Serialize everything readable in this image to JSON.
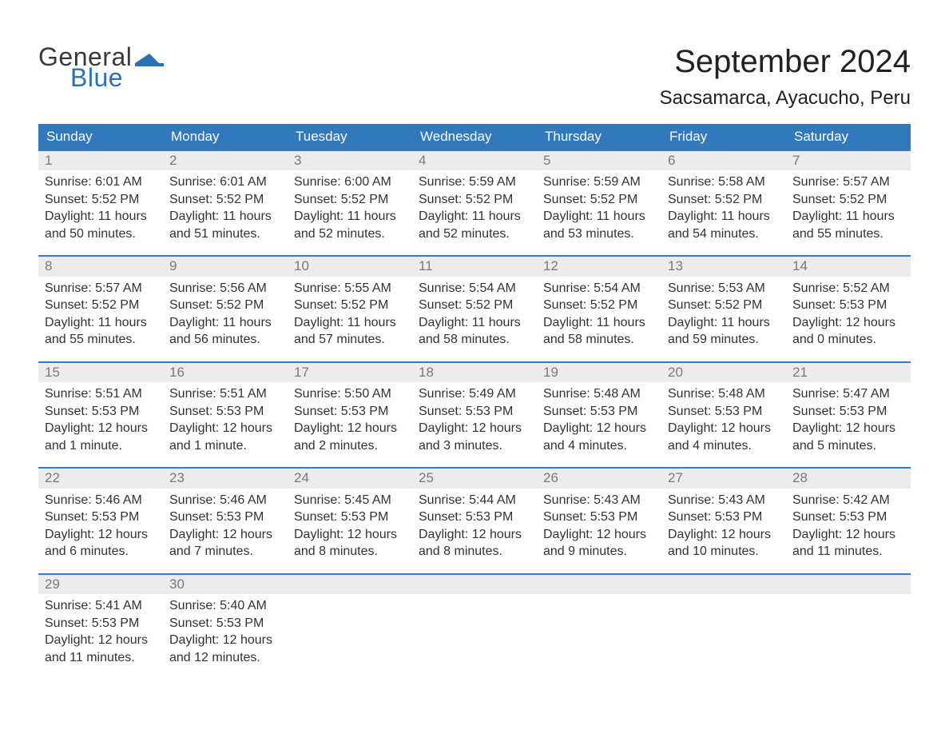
{
  "logo": {
    "word1": "General",
    "word2": "Blue",
    "text_color_word1": "#3a3a3a",
    "text_color_word2": "#2a72b5",
    "flag_color": "#2a72b5"
  },
  "title": "September 2024",
  "location": "Sacsamarca, Ayacucho, Peru",
  "colors": {
    "header_bg": "#3178bc",
    "header_text": "#ffffff",
    "daynum_bg": "#ececec",
    "daynum_text": "#7a7a7a",
    "body_text": "#333333",
    "row_border": "#3a7cbf",
    "page_bg": "#ffffff"
  },
  "typography": {
    "title_fontsize": 40,
    "location_fontsize": 24,
    "dow_fontsize": 17,
    "daynum_fontsize": 17,
    "body_fontsize": 16,
    "font_family": "Arial"
  },
  "days_of_week": [
    "Sunday",
    "Monday",
    "Tuesday",
    "Wednesday",
    "Thursday",
    "Friday",
    "Saturday"
  ],
  "labels": {
    "sunrise": "Sunrise:",
    "sunset": "Sunset:",
    "daylight": "Daylight:"
  },
  "weeks": [
    [
      {
        "n": "1",
        "sunrise": "6:01 AM",
        "sunset": "5:52 PM",
        "daylight": "11 hours and 50 minutes."
      },
      {
        "n": "2",
        "sunrise": "6:01 AM",
        "sunset": "5:52 PM",
        "daylight": "11 hours and 51 minutes."
      },
      {
        "n": "3",
        "sunrise": "6:00 AM",
        "sunset": "5:52 PM",
        "daylight": "11 hours and 52 minutes."
      },
      {
        "n": "4",
        "sunrise": "5:59 AM",
        "sunset": "5:52 PM",
        "daylight": "11 hours and 52 minutes."
      },
      {
        "n": "5",
        "sunrise": "5:59 AM",
        "sunset": "5:52 PM",
        "daylight": "11 hours and 53 minutes."
      },
      {
        "n": "6",
        "sunrise": "5:58 AM",
        "sunset": "5:52 PM",
        "daylight": "11 hours and 54 minutes."
      },
      {
        "n": "7",
        "sunrise": "5:57 AM",
        "sunset": "5:52 PM",
        "daylight": "11 hours and 55 minutes."
      }
    ],
    [
      {
        "n": "8",
        "sunrise": "5:57 AM",
        "sunset": "5:52 PM",
        "daylight": "11 hours and 55 minutes."
      },
      {
        "n": "9",
        "sunrise": "5:56 AM",
        "sunset": "5:52 PM",
        "daylight": "11 hours and 56 minutes."
      },
      {
        "n": "10",
        "sunrise": "5:55 AM",
        "sunset": "5:52 PM",
        "daylight": "11 hours and 57 minutes."
      },
      {
        "n": "11",
        "sunrise": "5:54 AM",
        "sunset": "5:52 PM",
        "daylight": "11 hours and 58 minutes."
      },
      {
        "n": "12",
        "sunrise": "5:54 AM",
        "sunset": "5:52 PM",
        "daylight": "11 hours and 58 minutes."
      },
      {
        "n": "13",
        "sunrise": "5:53 AM",
        "sunset": "5:52 PM",
        "daylight": "11 hours and 59 minutes."
      },
      {
        "n": "14",
        "sunrise": "5:52 AM",
        "sunset": "5:53 PM",
        "daylight": "12 hours and 0 minutes."
      }
    ],
    [
      {
        "n": "15",
        "sunrise": "5:51 AM",
        "sunset": "5:53 PM",
        "daylight": "12 hours and 1 minute."
      },
      {
        "n": "16",
        "sunrise": "5:51 AM",
        "sunset": "5:53 PM",
        "daylight": "12 hours and 1 minute."
      },
      {
        "n": "17",
        "sunrise": "5:50 AM",
        "sunset": "5:53 PM",
        "daylight": "12 hours and 2 minutes."
      },
      {
        "n": "18",
        "sunrise": "5:49 AM",
        "sunset": "5:53 PM",
        "daylight": "12 hours and 3 minutes."
      },
      {
        "n": "19",
        "sunrise": "5:48 AM",
        "sunset": "5:53 PM",
        "daylight": "12 hours and 4 minutes."
      },
      {
        "n": "20",
        "sunrise": "5:48 AM",
        "sunset": "5:53 PM",
        "daylight": "12 hours and 4 minutes."
      },
      {
        "n": "21",
        "sunrise": "5:47 AM",
        "sunset": "5:53 PM",
        "daylight": "12 hours and 5 minutes."
      }
    ],
    [
      {
        "n": "22",
        "sunrise": "5:46 AM",
        "sunset": "5:53 PM",
        "daylight": "12 hours and 6 minutes."
      },
      {
        "n": "23",
        "sunrise": "5:46 AM",
        "sunset": "5:53 PM",
        "daylight": "12 hours and 7 minutes."
      },
      {
        "n": "24",
        "sunrise": "5:45 AM",
        "sunset": "5:53 PM",
        "daylight": "12 hours and 8 minutes."
      },
      {
        "n": "25",
        "sunrise": "5:44 AM",
        "sunset": "5:53 PM",
        "daylight": "12 hours and 8 minutes."
      },
      {
        "n": "26",
        "sunrise": "5:43 AM",
        "sunset": "5:53 PM",
        "daylight": "12 hours and 9 minutes."
      },
      {
        "n": "27",
        "sunrise": "5:43 AM",
        "sunset": "5:53 PM",
        "daylight": "12 hours and 10 minutes."
      },
      {
        "n": "28",
        "sunrise": "5:42 AM",
        "sunset": "5:53 PM",
        "daylight": "12 hours and 11 minutes."
      }
    ],
    [
      {
        "n": "29",
        "sunrise": "5:41 AM",
        "sunset": "5:53 PM",
        "daylight": "12 hours and 11 minutes."
      },
      {
        "n": "30",
        "sunrise": "5:40 AM",
        "sunset": "5:53 PM",
        "daylight": "12 hours and 12 minutes."
      },
      null,
      null,
      null,
      null,
      null
    ]
  ]
}
